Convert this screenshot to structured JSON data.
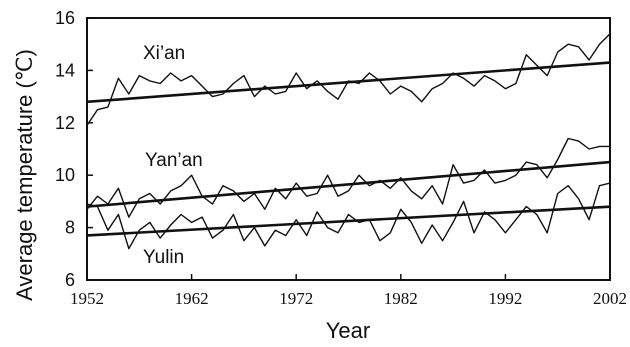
{
  "chart_data": {
    "type": "line",
    "xlabel": "Year",
    "ylabel": "Average temperature (℃)",
    "xlim": [
      1952,
      2002
    ],
    "ylim": [
      6,
      16
    ],
    "xticks": [
      1952,
      1962,
      1972,
      1982,
      1992,
      2002
    ],
    "yticks": [
      6,
      8,
      10,
      12,
      14,
      16
    ],
    "grid": false,
    "legend": "inline labels",
    "line_color": "#111111",
    "series": [
      {
        "name": "Xi’an",
        "x": [
          1952,
          1953,
          1954,
          1955,
          1956,
          1957,
          1958,
          1959,
          1960,
          1961,
          1962,
          1963,
          1964,
          1965,
          1966,
          1967,
          1968,
          1969,
          1970,
          1971,
          1972,
          1973,
          1974,
          1975,
          1976,
          1977,
          1978,
          1979,
          1980,
          1981,
          1982,
          1983,
          1984,
          1985,
          1986,
          1987,
          1988,
          1989,
          1990,
          1991,
          1992,
          1993,
          1994,
          1995,
          1996,
          1997,
          1998,
          1999,
          2000,
          2001,
          2002
        ],
        "values": [
          11.9,
          12.5,
          12.6,
          13.7,
          13.1,
          13.8,
          13.6,
          13.5,
          13.9,
          13.6,
          13.8,
          13.4,
          13.0,
          13.1,
          13.5,
          13.8,
          13.0,
          13.4,
          13.1,
          13.2,
          13.9,
          13.3,
          13.6,
          13.2,
          12.9,
          13.6,
          13.5,
          13.9,
          13.6,
          13.1,
          13.4,
          13.2,
          12.8,
          13.3,
          13.5,
          13.9,
          13.7,
          13.4,
          13.8,
          13.6,
          13.3,
          13.5,
          14.6,
          14.2,
          13.8,
          14.7,
          15.0,
          14.9,
          14.4,
          15.0,
          15.4
        ],
        "trend": [
          12.8,
          14.3
        ]
      },
      {
        "name": "Yan’an",
        "x": [
          1952,
          1953,
          1954,
          1955,
          1956,
          1957,
          1958,
          1959,
          1960,
          1961,
          1962,
          1963,
          1964,
          1965,
          1966,
          1967,
          1968,
          1969,
          1970,
          1971,
          1972,
          1973,
          1974,
          1975,
          1976,
          1977,
          1978,
          1979,
          1980,
          1981,
          1982,
          1983,
          1984,
          1985,
          1986,
          1987,
          1988,
          1989,
          1990,
          1991,
          1992,
          1993,
          1994,
          1995,
          1996,
          1997,
          1998,
          1999,
          2000,
          2001,
          2002
        ],
        "values": [
          8.7,
          9.2,
          8.9,
          9.5,
          8.4,
          9.1,
          9.3,
          8.9,
          9.4,
          9.6,
          10.0,
          9.2,
          8.9,
          9.6,
          9.4,
          9.0,
          9.3,
          8.7,
          9.5,
          9.1,
          9.7,
          9.2,
          9.3,
          10.0,
          9.2,
          9.4,
          10.0,
          9.6,
          9.8,
          9.5,
          9.9,
          9.4,
          9.1,
          9.6,
          8.9,
          10.4,
          9.7,
          9.8,
          10.2,
          9.7,
          9.8,
          10.0,
          10.5,
          10.4,
          9.9,
          10.6,
          11.4,
          11.3,
          11.0,
          11.1,
          11.1
        ],
        "trend": [
          8.8,
          10.5
        ]
      },
      {
        "name": "Yulin",
        "x": [
          1952,
          1953,
          1954,
          1955,
          1956,
          1957,
          1958,
          1959,
          1960,
          1961,
          1962,
          1963,
          1964,
          1965,
          1966,
          1967,
          1968,
          1969,
          1970,
          1971,
          1972,
          1973,
          1974,
          1975,
          1976,
          1977,
          1978,
          1979,
          1980,
          1981,
          1982,
          1983,
          1984,
          1985,
          1986,
          1987,
          1988,
          1989,
          1990,
          1991,
          1992,
          1993,
          1994,
          1995,
          1996,
          1997,
          1998,
          1999,
          2000,
          2001,
          2002
        ],
        "values": [
          8.9,
          8.8,
          7.9,
          8.5,
          7.2,
          7.9,
          8.2,
          7.6,
          8.1,
          8.5,
          8.2,
          8.4,
          7.6,
          7.9,
          8.5,
          7.5,
          8.0,
          7.3,
          7.9,
          7.7,
          8.3,
          7.7,
          8.6,
          8.0,
          7.8,
          8.5,
          8.2,
          8.3,
          7.5,
          7.8,
          8.7,
          8.2,
          7.4,
          8.1,
          7.5,
          8.2,
          9.0,
          7.8,
          8.6,
          8.3,
          7.8,
          8.3,
          8.8,
          8.5,
          7.8,
          9.3,
          9.6,
          9.1,
          8.3,
          9.6,
          9.7
        ],
        "trend": [
          7.7,
          8.8
        ]
      }
    ]
  }
}
